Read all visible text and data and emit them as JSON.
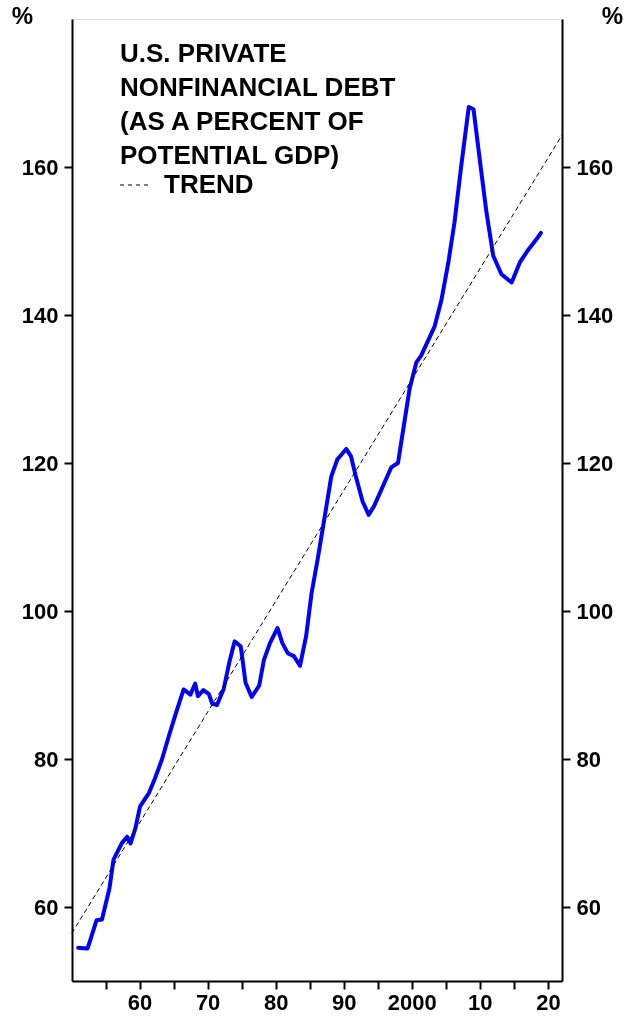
{
  "chart_data": {
    "type": "line",
    "title": "U.S. PRIVATE NONFINANCIAL DEBT (AS A PERCENT OF POTENTIAL GDP)",
    "ylabel": "%",
    "y2label": "%",
    "xlim": [
      1950,
      2022
    ],
    "ylim": [
      50,
      180
    ],
    "y2lim": [
      50,
      180
    ],
    "xticks": [
      {
        "value": 1955,
        "label": null
      },
      {
        "value": 1960,
        "label": "60"
      },
      {
        "value": 1965,
        "label": null
      },
      {
        "value": 1970,
        "label": "70"
      },
      {
        "value": 1975,
        "label": null
      },
      {
        "value": 1980,
        "label": "80"
      },
      {
        "value": 1985,
        "label": null
      },
      {
        "value": 1990,
        "label": "90"
      },
      {
        "value": 1995,
        "label": null
      },
      {
        "value": 2000,
        "label": "2000"
      },
      {
        "value": 2005,
        "label": null
      },
      {
        "value": 2010,
        "label": "10"
      },
      {
        "value": 2015,
        "label": null
      },
      {
        "value": 2020,
        "label": "20"
      }
    ],
    "yticks": [
      60,
      80,
      100,
      120,
      140,
      160
    ],
    "y2ticks": [
      60,
      80,
      100,
      120,
      140,
      160
    ],
    "grid": false,
    "legend": "top left",
    "marker": "none",
    "series": [
      {
        "color": "#0000ff",
        "line_style": "solid",
        "x": [
          1950.9,
          1952.3,
          1953.6,
          1954.4,
          1955.5,
          1956.1,
          1957.3,
          1958.1,
          1958.6,
          1959.3,
          1960.0,
          1961.3,
          1962.2,
          1963.2,
          1964.2,
          1965.2,
          1966.4,
          1967.4,
          1968.1,
          1968.5,
          1969.3,
          1970.1,
          1970.6,
          1971.3,
          1972.3,
          1973.1,
          1973.9,
          1974.8,
          1975.5,
          1976.4,
          1977.5,
          1978.2,
          1979.1,
          1980.2,
          1980.9,
          1981.7,
          1982.6,
          1983.5,
          1984.4,
          1985.2,
          1986.1,
          1987.0,
          1988.1,
          1989.0,
          1990.3,
          1991.0,
          1991.7,
          1992.7,
          1993.6,
          1994.4,
          1995.7,
          1996.9,
          1997.9,
          1998.6,
          1999.6,
          2000.6,
          2001.3,
          2002.1,
          2003.3,
          2004.3,
          2005.3,
          2006.2,
          2007.2,
          2008.3,
          2009.0,
          2009.9,
          2010.9,
          2011.9,
          2013.1,
          2014.6,
          2015.8,
          2017.1,
          2018.3,
          2018.9
        ],
        "values": [
          54.5,
          54.4,
          58.2,
          58.3,
          62.5,
          66.4,
          68.6,
          69.5,
          68.6,
          70.6,
          73.6,
          75.4,
          77.4,
          79.9,
          83.0,
          86.0,
          89.4,
          88.7,
          90.2,
          88.5,
          89.3,
          88.8,
          87.5,
          87.3,
          89.5,
          93.0,
          95.9,
          95.2,
          90.3,
          88.4,
          89.9,
          93.4,
          95.7,
          97.7,
          95.7,
          94.3,
          93.9,
          92.6,
          96.6,
          102.4,
          107.0,
          112.0,
          118.2,
          120.5,
          121.9,
          120.9,
          118.2,
          114.8,
          113.0,
          114.2,
          116.9,
          119.4,
          120.0,
          124.1,
          130.0,
          133.6,
          134.5,
          136.1,
          138.5,
          142.1,
          147.1,
          152.5,
          160.2,
          168.1,
          167.8,
          161.1,
          153.9,
          148.0,
          145.5,
          144.4,
          147.1,
          148.9,
          150.3,
          151.1
        ]
      },
      {
        "name": "TREND",
        "color": "#000000",
        "line_style": "dashed",
        "x": [
          1950,
          2022
        ],
        "values": [
          56.5,
          164.3
        ]
      }
    ]
  }
}
